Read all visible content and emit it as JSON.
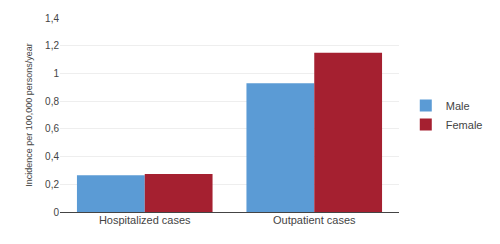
{
  "chart_data": {
    "type": "bar",
    "categories": [
      "Hospitalized cases",
      "Outpatient cases"
    ],
    "series": [
      {
        "name": "Male",
        "color": "#5B9BD5",
        "values": [
          0.265,
          0.93
        ]
      },
      {
        "name": "Female",
        "color": "#A52030",
        "values": [
          0.275,
          1.15
        ]
      }
    ],
    "ylabel": "Incidence per 100,000 persons/year",
    "ylim": [
      0,
      1.4
    ],
    "yticks": [
      0,
      {
        "value": 0.2,
        "label": "0,2"
      },
      {
        "value": 0.4,
        "label": "0,4"
      },
      {
        "value": 0.6,
        "label": "0,6"
      },
      {
        "value": 0.8,
        "label": "0,8"
      },
      1,
      {
        "value": 1.2,
        "label": "1,2"
      },
      {
        "value": 1.4,
        "label": "1,4"
      }
    ],
    "grid": true,
    "legend": "right"
  }
}
